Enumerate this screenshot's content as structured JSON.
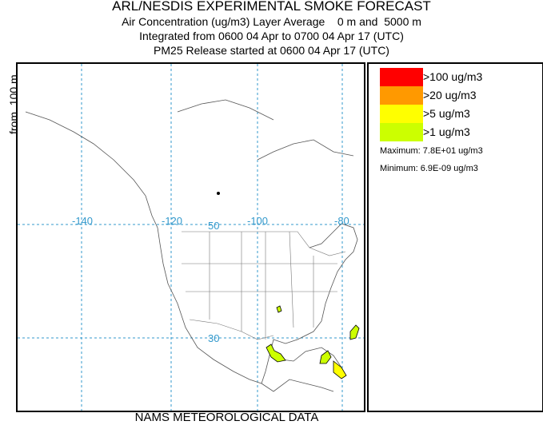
{
  "header": {
    "title": "ARL/NESDIS EXPERIMENTAL SMOKE FORECAST",
    "line1": "Air Concentration (ug/m3) Layer Average    0 m and  5000 m",
    "line2": "Integrated from 0600 04 Apr to 0700 04 Apr 17 (UTC)",
    "line3": "PM25 Release started at 0600 04 Apr 17 (UTC)"
  },
  "y_label": "from  100 m",
  "footer": "NAMS METEOROLOGICAL DATA",
  "map": {
    "grid_color": "#3399cc",
    "lon_labels": [
      "-140",
      "-120",
      "-100",
      "-80"
    ],
    "lat_labels": [
      "50",
      "30"
    ]
  },
  "legend": {
    "items": [
      {
        "label": ">100 ug/m3",
        "color": "#ff0000"
      },
      {
        "label": ">20 ug/m3",
        "color": "#ff9900"
      },
      {
        "label": ">5 ug/m3",
        "color": "#ffff00"
      },
      {
        "label": ">1 ug/m3",
        "color": "#ccff00"
      }
    ],
    "maximum": "Maximum: 7.8E+01 ug/m3",
    "minimum": "Minimum: 6.9E-09 ug/m3"
  }
}
